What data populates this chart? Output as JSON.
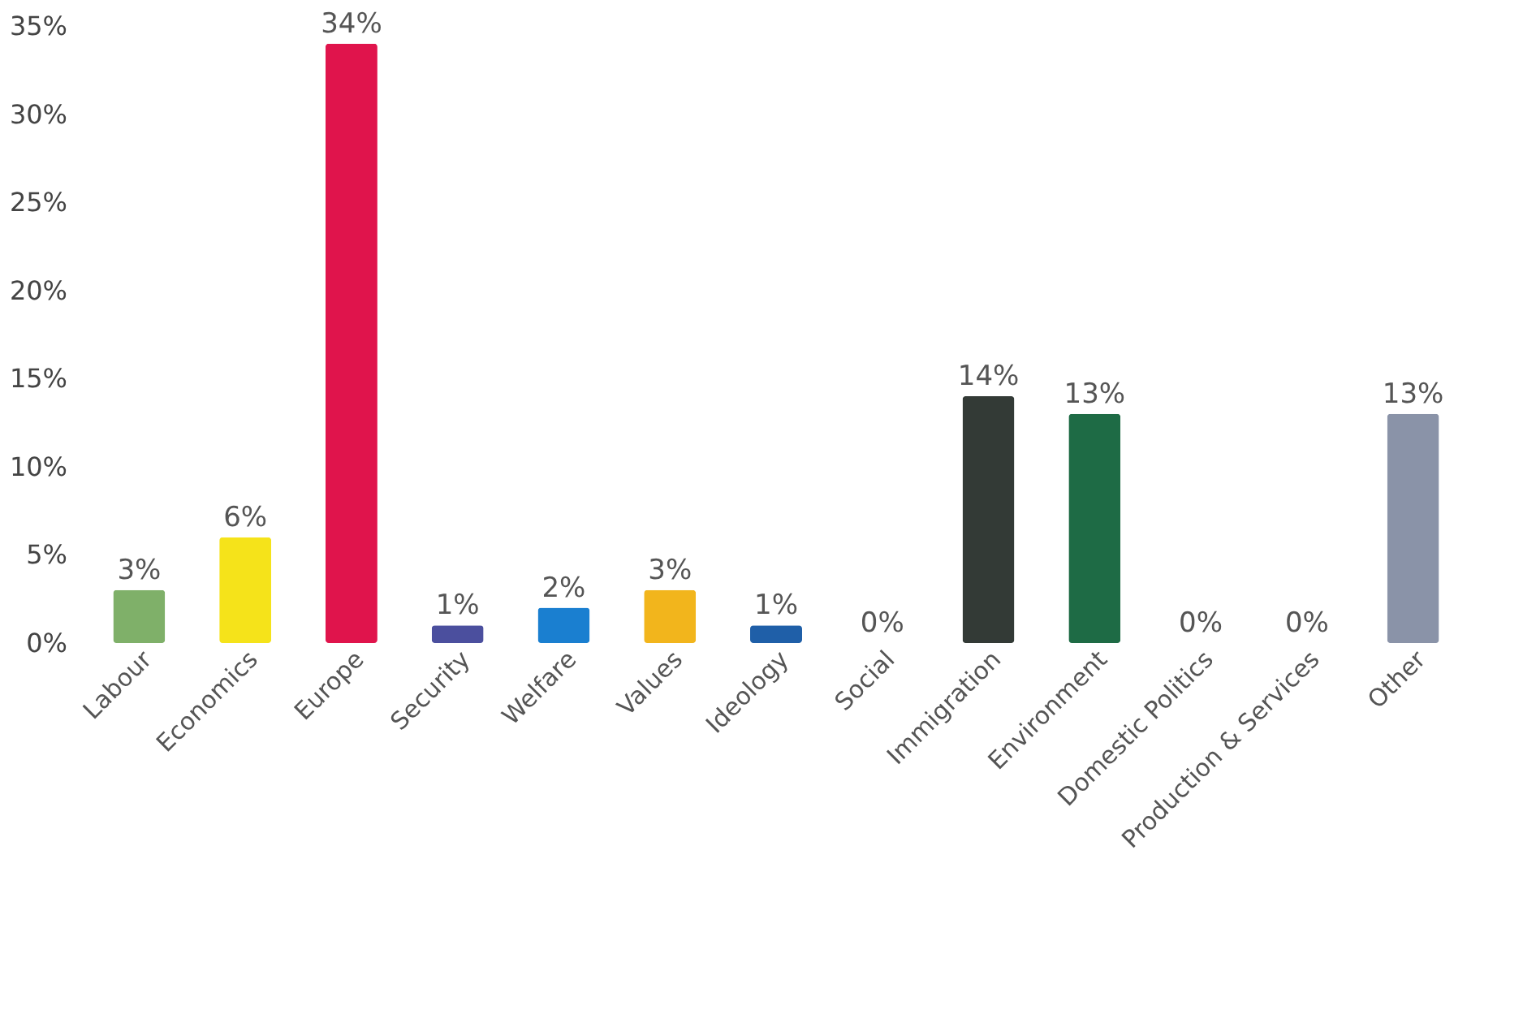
{
  "chart_data": {
    "type": "bar",
    "categories": [
      "Labour",
      "Economics",
      "Europe",
      "Security",
      "Welfare",
      "Values",
      "Ideology",
      "Social",
      "Immigration",
      "Environment",
      "Domestic Politics",
      "Production & Services",
      "Other"
    ],
    "values": [
      3,
      6,
      34,
      1,
      2,
      3,
      1,
      0,
      14,
      13,
      0,
      0,
      13
    ],
    "value_labels": [
      "3%",
      "6%",
      "34%",
      "1%",
      "2%",
      "3%",
      "1%",
      "0%",
      "14%",
      "13%",
      "0%",
      "0%",
      "13%"
    ],
    "colors": [
      "#7fb069",
      "#f5e31a",
      "#e0144c",
      "#4b4f9e",
      "#1a7fd0",
      "#f2b51c",
      "#1f5fa8",
      "#1e6b4a",
      "#333a36",
      "#1e6b45",
      "#1a7fd0",
      "#e0144c",
      "#8a93a8"
    ],
    "ylim": [
      0,
      35
    ],
    "yticks": [
      {
        "value": 0,
        "label": "0%"
      },
      {
        "value": 5,
        "label": "5%"
      },
      {
        "value": 10,
        "label": "10%"
      },
      {
        "value": 15,
        "label": "15%"
      },
      {
        "value": 20,
        "label": "20%"
      },
      {
        "value": 25,
        "label": "25%"
      },
      {
        "value": 30,
        "label": "30%"
      },
      {
        "value": 35,
        "label": "35%"
      }
    ],
    "grid": false
  }
}
